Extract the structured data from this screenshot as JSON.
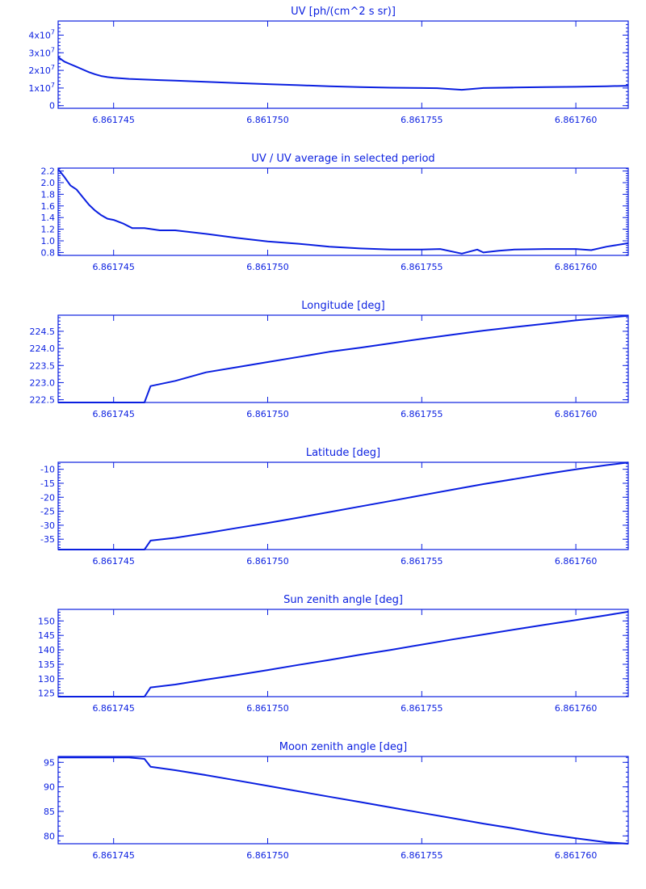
{
  "colors": {
    "ink": "#0a1fe0",
    "background": "#ffffff"
  },
  "chart_data": [
    {
      "type": "line",
      "title": "UV [ph/(cm^2 s sr)]",
      "x_ticks": [
        "6.861745",
        "6.861750",
        "6.861755",
        "6.861760"
      ],
      "xlim": [
        6.8617432,
        6.8617617
      ],
      "ylim": [
        -1500000,
        48000000
      ],
      "y_ticks": [
        {
          "value": 0,
          "mantissa": "0",
          "exp": ""
        },
        {
          "value": 10000000,
          "mantissa": "1x10",
          "exp": "7"
        },
        {
          "value": 20000000,
          "mantissa": "2x10",
          "exp": "7"
        },
        {
          "value": 30000000,
          "mantissa": "3x10",
          "exp": "7"
        },
        {
          "value": 40000000,
          "mantissa": "4x10",
          "exp": "7"
        }
      ],
      "series": [
        {
          "points": [
            [
              6.8617432,
              27500000
            ],
            [
              6.8617434,
              25000000
            ],
            [
              6.8617436,
              23500000
            ],
            [
              6.8617438,
              22000000
            ],
            [
              6.861744,
              20500000
            ],
            [
              6.8617442,
              19000000
            ],
            [
              6.8617444,
              17800000
            ],
            [
              6.8617446,
              16800000
            ],
            [
              6.8617448,
              16200000
            ],
            [
              6.861745,
              15800000
            ],
            [
              6.8617455,
              15200000
            ],
            [
              6.861746,
              14800000
            ],
            [
              6.8617465,
              14500000
            ],
            [
              6.861747,
              14200000
            ],
            [
              6.861748,
              13500000
            ],
            [
              6.861749,
              12800000
            ],
            [
              6.86175,
              12200000
            ],
            [
              6.861751,
              11600000
            ],
            [
              6.861752,
              11000000
            ],
            [
              6.861753,
              10500000
            ],
            [
              6.861754,
              10200000
            ],
            [
              6.861755,
              10000000
            ],
            [
              6.8617555,
              9900000
            ],
            [
              6.8617563,
              9000000
            ],
            [
              6.861757,
              10000000
            ],
            [
              6.861758,
              10300000
            ],
            [
              6.861759,
              10500000
            ],
            [
              6.86176,
              10700000
            ],
            [
              6.861761,
              11000000
            ],
            [
              6.8617617,
              11300000
            ]
          ]
        }
      ]
    },
    {
      "type": "line",
      "title": "UV / UV average in selected period",
      "x_ticks": [
        "6.861745",
        "6.861750",
        "6.861755",
        "6.861760"
      ],
      "xlim": [
        6.8617432,
        6.8617617
      ],
      "ylim": [
        0.75,
        2.25
      ],
      "y_ticks": [
        {
          "value": 0.8,
          "mantissa": "0.8",
          "exp": ""
        },
        {
          "value": 1.0,
          "mantissa": "1.0",
          "exp": ""
        },
        {
          "value": 1.2,
          "mantissa": "1.2",
          "exp": ""
        },
        {
          "value": 1.4,
          "mantissa": "1.4",
          "exp": ""
        },
        {
          "value": 1.6,
          "mantissa": "1.6",
          "exp": ""
        },
        {
          "value": 1.8,
          "mantissa": "1.8",
          "exp": ""
        },
        {
          "value": 2.0,
          "mantissa": "2.0",
          "exp": ""
        },
        {
          "value": 2.2,
          "mantissa": "2.2",
          "exp": ""
        }
      ],
      "series": [
        {
          "points": [
            [
              6.8617432,
              2.23
            ],
            [
              6.8617434,
              2.1
            ],
            [
              6.8617436,
              1.95
            ],
            [
              6.8617438,
              1.88
            ],
            [
              6.861744,
              1.75
            ],
            [
              6.8617442,
              1.62
            ],
            [
              6.8617444,
              1.52
            ],
            [
              6.8617446,
              1.44
            ],
            [
              6.8617448,
              1.38
            ],
            [
              6.861745,
              1.36
            ],
            [
              6.8617453,
              1.3
            ],
            [
              6.8617456,
              1.22
            ],
            [
              6.861746,
              1.22
            ],
            [
              6.8617465,
              1.18
            ],
            [
              6.861747,
              1.18
            ],
            [
              6.861748,
              1.12
            ],
            [
              6.861749,
              1.05
            ],
            [
              6.86175,
              0.99
            ],
            [
              6.861751,
              0.95
            ],
            [
              6.861752,
              0.9
            ],
            [
              6.861753,
              0.87
            ],
            [
              6.861754,
              0.85
            ],
            [
              6.861755,
              0.85
            ],
            [
              6.8617556,
              0.86
            ],
            [
              6.8617563,
              0.78
            ],
            [
              6.8617568,
              0.85
            ],
            [
              6.861757,
              0.8
            ],
            [
              6.8617575,
              0.83
            ],
            [
              6.861758,
              0.85
            ],
            [
              6.861759,
              0.86
            ],
            [
              6.86176,
              0.86
            ],
            [
              6.8617605,
              0.84
            ],
            [
              6.861761,
              0.9
            ],
            [
              6.8617617,
              0.96
            ]
          ]
        }
      ]
    },
    {
      "type": "line",
      "title": "Longitude [deg]",
      "x_ticks": [
        "6.861745",
        "6.861750",
        "6.861755",
        "6.861760"
      ],
      "xlim": [
        6.8617432,
        6.8617617
      ],
      "ylim": [
        222.42,
        224.97
      ],
      "y_ticks": [
        {
          "value": 222.5,
          "mantissa": "222.5",
          "exp": ""
        },
        {
          "value": 223.0,
          "mantissa": "223.0",
          "exp": ""
        },
        {
          "value": 223.5,
          "mantissa": "223.5",
          "exp": ""
        },
        {
          "value": 224.0,
          "mantissa": "224.0",
          "exp": ""
        },
        {
          "value": 224.5,
          "mantissa": "224.5",
          "exp": ""
        }
      ],
      "series": [
        {
          "points": [
            [
              6.8617432,
              222.42
            ],
            [
              6.861746,
              222.42
            ],
            [
              6.8617462,
              222.9
            ],
            [
              6.861747,
              223.05
            ],
            [
              6.861748,
              223.3
            ],
            [
              6.861749,
              223.45
            ],
            [
              6.86175,
              223.6
            ],
            [
              6.861751,
              223.75
            ],
            [
              6.861752,
              223.9
            ],
            [
              6.861753,
              224.02
            ],
            [
              6.861754,
              224.15
            ],
            [
              6.861755,
              224.28
            ],
            [
              6.861756,
              224.4
            ],
            [
              6.861757,
              224.52
            ],
            [
              6.861758,
              224.62
            ],
            [
              6.861759,
              224.72
            ],
            [
              6.86176,
              224.82
            ],
            [
              6.861761,
              224.9
            ],
            [
              6.8617617,
              224.95
            ]
          ]
        }
      ]
    },
    {
      "type": "line",
      "title": "Latitude [deg]",
      "x_ticks": [
        "6.861745",
        "6.861750",
        "6.861755",
        "6.861760"
      ],
      "xlim": [
        6.8617432,
        6.8617617
      ],
      "ylim": [
        -38.7,
        -7.5
      ],
      "y_ticks": [
        {
          "value": -35,
          "mantissa": "-35",
          "exp": ""
        },
        {
          "value": -30,
          "mantissa": "-30",
          "exp": ""
        },
        {
          "value": -25,
          "mantissa": "-25",
          "exp": ""
        },
        {
          "value": -20,
          "mantissa": "-20",
          "exp": ""
        },
        {
          "value": -15,
          "mantissa": "-15",
          "exp": ""
        },
        {
          "value": -10,
          "mantissa": "-10",
          "exp": ""
        }
      ],
      "series": [
        {
          "points": [
            [
              6.8617432,
              -38.7
            ],
            [
              6.861746,
              -38.7
            ],
            [
              6.8617462,
              -35.5
            ],
            [
              6.861747,
              -34.5
            ],
            [
              6.861748,
              -32.8
            ],
            [
              6.861749,
              -31.0
            ],
            [
              6.86175,
              -29.2
            ],
            [
              6.861751,
              -27.3
            ],
            [
              6.861752,
              -25.3
            ],
            [
              6.861753,
              -23.3
            ],
            [
              6.861754,
              -21.3
            ],
            [
              6.861755,
              -19.3
            ],
            [
              6.861756,
              -17.3
            ],
            [
              6.861757,
              -15.3
            ],
            [
              6.861758,
              -13.5
            ],
            [
              6.861759,
              -11.7
            ],
            [
              6.86176,
              -10.0
            ],
            [
              6.861761,
              -8.5
            ],
            [
              6.8617617,
              -7.6
            ]
          ]
        }
      ]
    },
    {
      "type": "line",
      "title": "Sun zenith angle [deg]",
      "x_ticks": [
        "6.861745",
        "6.861750",
        "6.861755",
        "6.861760"
      ],
      "xlim": [
        6.8617432,
        6.8617617
      ],
      "ylim": [
        123.8,
        154.0
      ],
      "y_ticks": [
        {
          "value": 125,
          "mantissa": "125",
          "exp": ""
        },
        {
          "value": 130,
          "mantissa": "130",
          "exp": ""
        },
        {
          "value": 135,
          "mantissa": "135",
          "exp": ""
        },
        {
          "value": 140,
          "mantissa": "140",
          "exp": ""
        },
        {
          "value": 145,
          "mantissa": "145",
          "exp": ""
        },
        {
          "value": 150,
          "mantissa": "150",
          "exp": ""
        }
      ],
      "series": [
        {
          "points": [
            [
              6.8617432,
              123.8
            ],
            [
              6.861746,
              123.8
            ],
            [
              6.8617462,
              127.0
            ],
            [
              6.861747,
              128.0
            ],
            [
              6.861748,
              129.7
            ],
            [
              6.861749,
              131.3
            ],
            [
              6.86175,
              133.0
            ],
            [
              6.861751,
              134.8
            ],
            [
              6.861752,
              136.5
            ],
            [
              6.861753,
              138.3
            ],
            [
              6.861754,
              140.0
            ],
            [
              6.861755,
              141.8
            ],
            [
              6.861756,
              143.6
            ],
            [
              6.861757,
              145.3
            ],
            [
              6.861758,
              147.0
            ],
            [
              6.861759,
              148.7
            ],
            [
              6.86176,
              150.3
            ],
            [
              6.861761,
              152.0
            ],
            [
              6.8617617,
              153.2
            ]
          ]
        }
      ]
    },
    {
      "type": "line",
      "title": "Moon zenith angle [deg]",
      "x_ticks": [
        "6.861745",
        "6.861750",
        "6.861755",
        "6.861760"
      ],
      "xlim": [
        6.8617432,
        6.8617617
      ],
      "ylim": [
        78.4,
        96.2
      ],
      "y_ticks": [
        {
          "value": 80,
          "mantissa": "80",
          "exp": ""
        },
        {
          "value": 85,
          "mantissa": "85",
          "exp": ""
        },
        {
          "value": 90,
          "mantissa": "90",
          "exp": ""
        },
        {
          "value": 95,
          "mantissa": "95",
          "exp": ""
        }
      ],
      "series": [
        {
          "points": [
            [
              6.8617432,
              96.0
            ],
            [
              6.8617455,
              96.0
            ],
            [
              6.861746,
              95.7
            ],
            [
              6.8617462,
              94.1
            ],
            [
              6.861747,
              93.4
            ],
            [
              6.861748,
              92.4
            ],
            [
              6.861749,
              91.3
            ],
            [
              6.86175,
              90.2
            ],
            [
              6.861751,
              89.1
            ],
            [
              6.861752,
              88.0
            ],
            [
              6.861753,
              86.9
            ],
            [
              6.861754,
              85.8
            ],
            [
              6.861755,
              84.7
            ],
            [
              6.861756,
              83.6
            ],
            [
              6.861757,
              82.5
            ],
            [
              6.861758,
              81.5
            ],
            [
              6.861759,
              80.4
            ],
            [
              6.86176,
              79.5
            ],
            [
              6.861761,
              78.7
            ],
            [
              6.8617617,
              78.4
            ]
          ]
        }
      ]
    }
  ]
}
